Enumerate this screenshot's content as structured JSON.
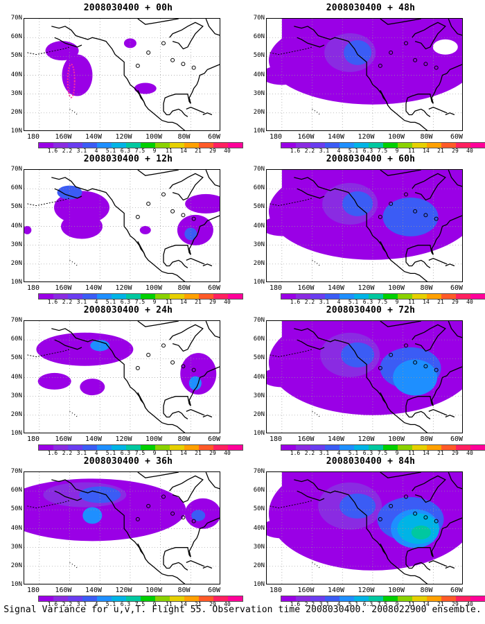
{
  "caption": "Signal Variance for u,v,T. Flight 55. Observation time 2008030400. 2008022900 ensemble.",
  "lat_labels": [
    "70N",
    "60N",
    "50N",
    "40N",
    "30N",
    "20N",
    "10N"
  ],
  "lon_labels": [
    "180",
    "160W",
    "140W",
    "120W",
    "100W",
    "80W",
    "60W"
  ],
  "colorbar": {
    "labels": [
      "1.6",
      "2.2",
      "3.1",
      "4",
      "5.1",
      "6.3",
      "7.5",
      "9",
      "11",
      "14",
      "21",
      "29",
      "40"
    ],
    "colors": [
      "#9a00e6",
      "#8a2be2",
      "#6a3df0",
      "#3b5cf5",
      "#1e8fff",
      "#00b4e6",
      "#00c8a0",
      "#00d000",
      "#8ad200",
      "#e6d000",
      "#ffa000",
      "#ff5a28",
      "#ff2060",
      "#ff0099"
    ]
  },
  "panels": [
    {
      "id": "00h",
      "title": "2008030400 + 00h",
      "level": 0
    },
    {
      "id": "48h",
      "title": "2008030400 + 48h",
      "level": 4
    },
    {
      "id": "12h",
      "title": "2008030400 + 12h",
      "level": 1
    },
    {
      "id": "60h",
      "title": "2008030400 + 60h",
      "level": 5
    },
    {
      "id": "24h",
      "title": "2008030400 + 24h",
      "level": 2
    },
    {
      "id": "72h",
      "title": "2008030400 + 72h",
      "level": 6
    },
    {
      "id": "36h",
      "title": "2008030400 + 36h",
      "level": 3
    },
    {
      "id": "84h",
      "title": "2008030400 + 84h",
      "level": 7
    }
  ]
}
